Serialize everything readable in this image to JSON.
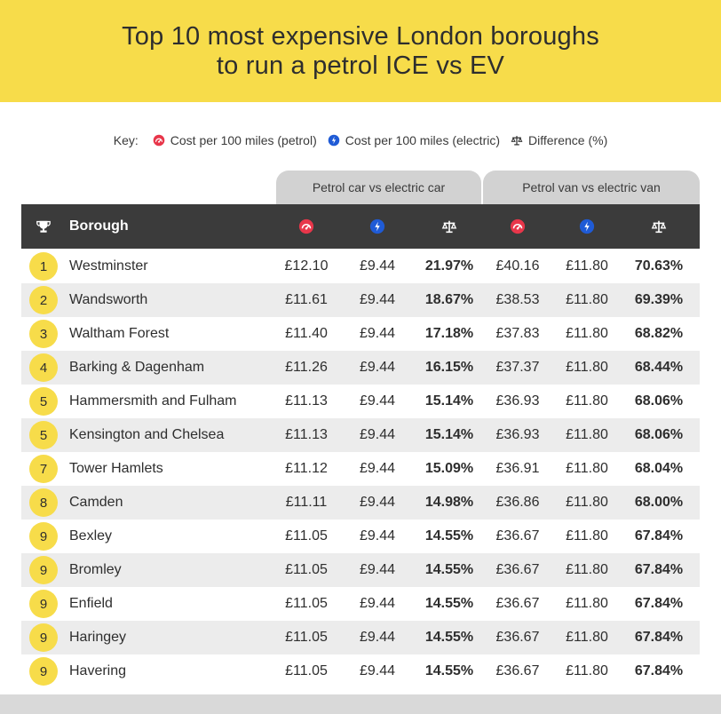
{
  "title": {
    "line1": "Top 10 most expensive London boroughs",
    "line2": "to run a petrol ICE vs EV"
  },
  "key": {
    "label": "Key:",
    "petrol": "Cost per 100 miles (petrol)",
    "electric": "Cost per 100 miles (electric)",
    "difference": "Difference (%)"
  },
  "groups": {
    "car": "Petrol car vs electric car",
    "van": "Petrol van vs electric van"
  },
  "header": {
    "borough": "Borough"
  },
  "icons": {
    "petrol": "fuel-pump-icon",
    "electric": "ev-plug-icon",
    "difference": "scales-icon",
    "rank": "trophy-icon"
  },
  "colors": {
    "accent_yellow": "#f7dc4a",
    "petrol_red": "#e8364a",
    "electric_blue": "#1f5bd6",
    "header_dark": "#3b3b3b",
    "tab_grey": "#d2d2d2"
  },
  "rows": [
    {
      "rank": "1",
      "borough": "Westminster",
      "car_petrol": "£12.10",
      "car_electric": "£9.44",
      "car_diff": "21.97%",
      "van_petrol": "£40.16",
      "van_electric": "£11.80",
      "van_diff": "70.63%"
    },
    {
      "rank": "2",
      "borough": "Wandsworth",
      "car_petrol": "£11.61",
      "car_electric": "£9.44",
      "car_diff": "18.67%",
      "van_petrol": "£38.53",
      "van_electric": "£11.80",
      "van_diff": "69.39%"
    },
    {
      "rank": "3",
      "borough": "Waltham Forest",
      "car_petrol": "£11.40",
      "car_electric": "£9.44",
      "car_diff": "17.18%",
      "van_petrol": "£37.83",
      "van_electric": "£11.80",
      "van_diff": "68.82%"
    },
    {
      "rank": "4",
      "borough": "Barking & Dagenham",
      "car_petrol": "£11.26",
      "car_electric": "£9.44",
      "car_diff": "16.15%",
      "van_petrol": "£37.37",
      "van_electric": "£11.80",
      "van_diff": "68.44%"
    },
    {
      "rank": "5",
      "borough": "Hammersmith and Fulham",
      "car_petrol": "£11.13",
      "car_electric": "£9.44",
      "car_diff": "15.14%",
      "van_petrol": "£36.93",
      "van_electric": "£11.80",
      "van_diff": "68.06%"
    },
    {
      "rank": "5",
      "borough": "Kensington and Chelsea",
      "car_petrol": "£11.13",
      "car_electric": "£9.44",
      "car_diff": "15.14%",
      "van_petrol": "£36.93",
      "van_electric": "£11.80",
      "van_diff": "68.06%"
    },
    {
      "rank": "7",
      "borough": "Tower Hamlets",
      "car_petrol": "£11.12",
      "car_electric": "£9.44",
      "car_diff": "15.09%",
      "van_petrol": "£36.91",
      "van_electric": "£11.80",
      "van_diff": "68.04%"
    },
    {
      "rank": "8",
      "borough": "Camden",
      "car_petrol": "£11.11",
      "car_electric": "£9.44",
      "car_diff": "14.98%",
      "van_petrol": "£36.86",
      "van_electric": "£11.80",
      "van_diff": "68.00%"
    },
    {
      "rank": "9",
      "borough": "Bexley",
      "car_petrol": "£11.05",
      "car_electric": "£9.44",
      "car_diff": "14.55%",
      "van_petrol": "£36.67",
      "van_electric": "£11.80",
      "van_diff": "67.84%"
    },
    {
      "rank": "9",
      "borough": "Bromley",
      "car_petrol": "£11.05",
      "car_electric": "£9.44",
      "car_diff": "14.55%",
      "van_petrol": "£36.67",
      "van_electric": "£11.80",
      "van_diff": "67.84%"
    },
    {
      "rank": "9",
      "borough": "Enfield",
      "car_petrol": "£11.05",
      "car_electric": "£9.44",
      "car_diff": "14.55%",
      "van_petrol": "£36.67",
      "van_electric": "£11.80",
      "van_diff": "67.84%"
    },
    {
      "rank": "9",
      "borough": "Haringey",
      "car_petrol": "£11.05",
      "car_electric": "£9.44",
      "car_diff": "14.55%",
      "van_petrol": "£36.67",
      "van_electric": "£11.80",
      "van_diff": "67.84%"
    },
    {
      "rank": "9",
      "borough": "Havering",
      "car_petrol": "£11.05",
      "car_electric": "£9.44",
      "car_diff": "14.55%",
      "van_petrol": "£36.67",
      "van_electric": "£11.80",
      "van_diff": "67.84%"
    }
  ]
}
